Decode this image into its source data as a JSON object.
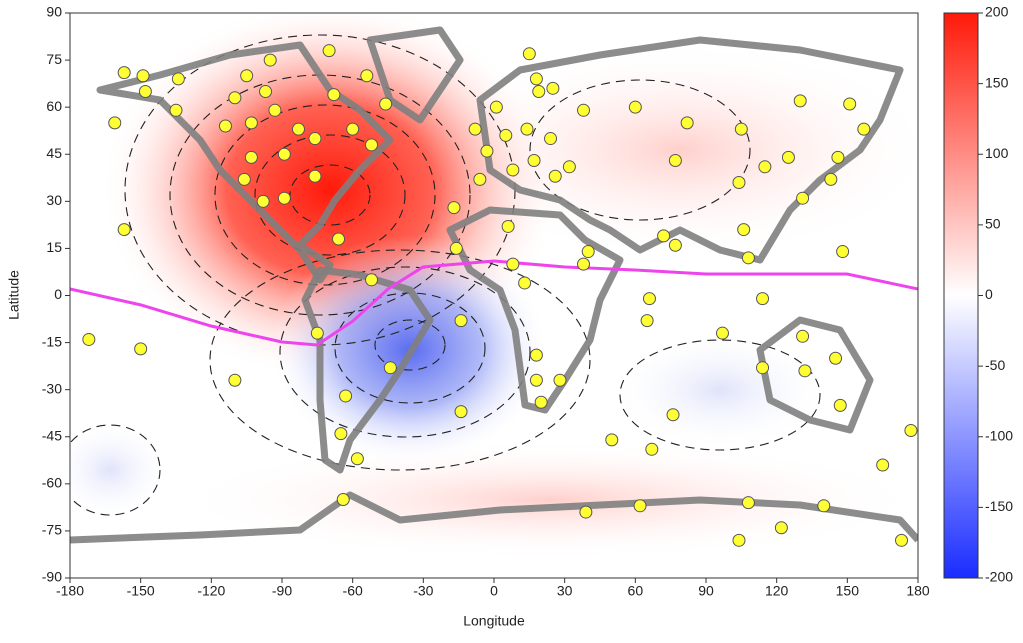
{
  "chart_data": {
    "type": "scatter",
    "xlabel": "Longitude",
    "ylabel": "Latitude",
    "xlim": [
      -180,
      180
    ],
    "xticks": [
      -180,
      -150,
      -120,
      -90,
      -60,
      -30,
      0,
      30,
      60,
      90,
      120,
      150,
      180
    ],
    "ylim": [
      -90,
      90
    ],
    "yticks": [
      -90,
      -75,
      -60,
      -45,
      -30,
      -15,
      0,
      15,
      30,
      45,
      60,
      75,
      90
    ],
    "colorbar": {
      "lim": [
        -200,
        200
      ],
      "ticks": [
        -200,
        -150,
        -100,
        -50,
        0,
        50,
        100,
        150,
        200
      ]
    },
    "series": [
      {
        "color": "#ffff33",
        "x": [
          -157,
          -149,
          -148,
          -161,
          -135,
          -134,
          -157,
          -172,
          -150,
          -110,
          -105,
          -95,
          -70,
          -54,
          -46,
          -68,
          -97,
          -110,
          -114,
          -103,
          -93,
          -83,
          -60,
          -52,
          -76,
          -103,
          -89,
          -106,
          -98,
          -89,
          -76,
          -66,
          -52,
          -75,
          -44,
          -63,
          -65,
          -58,
          -64,
          -14,
          -14,
          -16,
          -17,
          15,
          18,
          25,
          19,
          1,
          -8,
          -3,
          5,
          14,
          24,
          17,
          26,
          32,
          -6,
          8,
          6,
          8,
          13,
          18,
          18,
          28,
          20,
          38,
          40,
          38,
          50,
          65,
          66,
          60,
          82,
          77,
          72,
          77,
          97,
          76,
          67,
          105,
          104,
          106,
          108,
          115,
          114,
          114,
          130,
          131,
          125,
          143,
          146,
          151,
          157,
          148,
          132,
          131,
          145,
          147,
          177,
          165,
          173,
          140,
          108,
          104,
          122,
          62,
          39
        ],
        "values": [
          71,
          70,
          65,
          55,
          59,
          69,
          21,
          -14,
          -17,
          -27,
          70,
          75,
          78,
          70,
          61,
          64,
          65,
          63,
          54,
          55,
          59,
          53,
          53,
          48,
          50,
          44,
          45,
          37,
          30,
          31,
          38,
          18,
          5,
          -12,
          -23,
          -32,
          -44,
          -52,
          -65,
          -8,
          -37,
          15,
          28,
          77,
          69,
          66,
          65,
          60,
          53,
          46,
          51,
          53,
          50,
          43,
          38,
          41,
          37,
          40,
          22,
          10,
          4,
          -19,
          -27,
          -27,
          -34,
          59,
          14,
          10,
          -46,
          -8,
          -1,
          60,
          55,
          43,
          19,
          16,
          -12,
          -38,
          -49,
          53,
          36,
          21,
          12,
          41,
          -1,
          -23,
          62,
          31,
          44,
          37,
          44,
          61,
          53,
          14,
          -24,
          -13,
          -20,
          -35,
          -43,
          -54,
          -78,
          -67,
          -66,
          -78,
          -74,
          -67,
          -69
        ]
      }
    ]
  }
}
